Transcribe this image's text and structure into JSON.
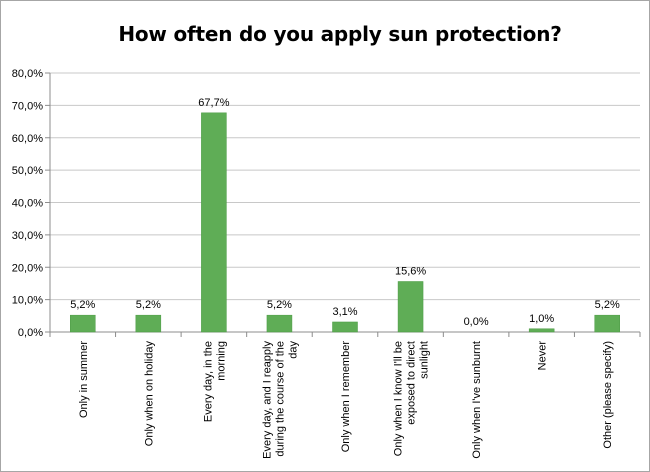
{
  "chart_data": {
    "type": "bar",
    "title": "How often do you apply sun protection?",
    "xlabel": "",
    "ylabel": "",
    "categories": [
      "Only in summer",
      "Only when on holiday",
      "Every day, in the morning",
      "Every day, and I reapply during the course of the day",
      "Only when I remember",
      "Only when I know I'll be exposed to direct sunlight",
      "Only when I've sunburnt",
      "Never",
      "Other (please specify)"
    ],
    "category_lines": [
      [
        "Only in summer"
      ],
      [
        "Only when on holiday"
      ],
      [
        "Every day, in the",
        "morning"
      ],
      [
        "Every day, and I reapply",
        "during the course of the",
        "day"
      ],
      [
        "Only when I remember"
      ],
      [
        "Only when I know I'll be",
        "exposed to direct",
        "sunlight"
      ],
      [
        "Only when I've sunburnt"
      ],
      [
        "Never"
      ],
      [
        "Other (please specify)"
      ]
    ],
    "values": [
      5.2,
      5.2,
      67.7,
      5.2,
      3.1,
      15.6,
      0.0,
      1.0,
      5.2
    ],
    "value_labels": [
      "5,2%",
      "5,2%",
      "67,7%",
      "5,2%",
      "3,1%",
      "15,6%",
      "0,0%",
      "1,0%",
      "5,2%"
    ],
    "ylim": [
      0,
      80
    ],
    "y_ticks": [
      0,
      10,
      20,
      30,
      40,
      50,
      60,
      70,
      80
    ],
    "y_tick_labels": [
      "0,0%",
      "10,0%",
      "20,0%",
      "30,0%",
      "40,0%",
      "50,0%",
      "60,0%",
      "70,0%",
      "80,0%"
    ],
    "grid": true,
    "legend": "none",
    "colors": {
      "bar": "#5fad56",
      "bar_edge": "#4a9a42",
      "grid": "#c8c8c8",
      "axis": "#8c8c8c"
    }
  }
}
